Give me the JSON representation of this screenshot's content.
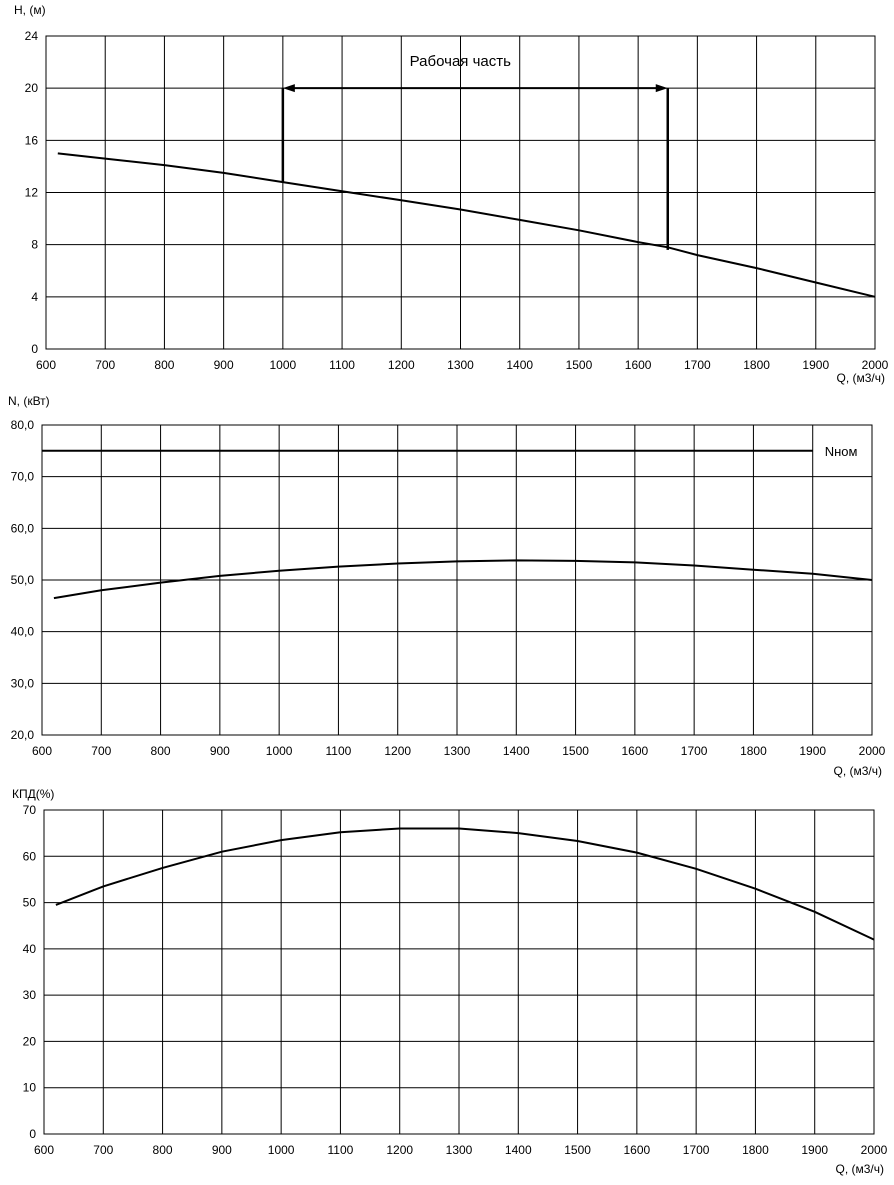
{
  "chart_data": [
    {
      "type": "line",
      "ylabel": "H, (м)",
      "xlabel": "Q, (м3/ч)",
      "xlim": [
        600,
        2000
      ],
      "ylim": [
        0,
        24
      ],
      "x_ticks": [
        "600",
        "700",
        "800",
        "900",
        "1000",
        "1100",
        "1200",
        "1300",
        "1400",
        "1500",
        "1600",
        "1700",
        "1800",
        "1900",
        "2000"
      ],
      "y_ticks": [
        "0",
        "4",
        "8",
        "12",
        "16",
        "20",
        "24"
      ],
      "grid": true,
      "series": [
        {
          "x": [
            620,
            700,
            800,
            900,
            1000,
            1100,
            1200,
            1300,
            1400,
            1500,
            1600,
            1650,
            1700,
            1800,
            1900,
            2000
          ],
          "y": [
            15.0,
            14.6,
            14.1,
            13.5,
            12.8,
            12.1,
            11.4,
            10.7,
            9.9,
            9.1,
            8.2,
            7.8,
            7.2,
            6.2,
            5.1,
            4.0
          ]
        }
      ],
      "annotations": [
        {
          "text": "Рабочая часть",
          "x_start": 1000,
          "x_end": 1650,
          "y": 20,
          "y_start_bottom": 12.8,
          "y_end_bottom": 7.6
        }
      ]
    },
    {
      "type": "line",
      "ylabel": "N, (кВт)",
      "xlabel": "Q, (м3/ч)",
      "xlim": [
        600,
        2000
      ],
      "ylim": [
        20,
        80
      ],
      "x_ticks": [
        "600",
        "700",
        "800",
        "900",
        "1000",
        "1100",
        "1200",
        "1300",
        "1400",
        "1500",
        "1600",
        "1700",
        "1800",
        "1900",
        "2000"
      ],
      "y_ticks": [
        "20,0",
        "30,0",
        "40,0",
        "50,0",
        "60,0",
        "70,0",
        "80,0"
      ],
      "grid": true,
      "series": [
        {
          "x": [
            620,
            700,
            800,
            900,
            1000,
            1100,
            1200,
            1300,
            1400,
            1500,
            1600,
            1700,
            1800,
            1900,
            2000
          ],
          "y": [
            46.5,
            48.0,
            49.5,
            50.8,
            51.8,
            52.6,
            53.2,
            53.6,
            53.8,
            53.7,
            53.4,
            52.8,
            52.0,
            51.2,
            50.0
          ]
        },
        {
          "name": "Nном",
          "x": [
            600,
            1900
          ],
          "y": [
            75,
            75
          ]
        }
      ]
    },
    {
      "type": "line",
      "ylabel": "КПД(%)",
      "xlabel": "Q, (м3/ч)",
      "xlim": [
        600,
        2000
      ],
      "ylim": [
        0,
        70
      ],
      "x_ticks": [
        "600",
        "700",
        "800",
        "900",
        "1000",
        "1100",
        "1200",
        "1300",
        "1400",
        "1500",
        "1600",
        "1700",
        "1800",
        "1900",
        "2000"
      ],
      "y_ticks": [
        "0",
        "10",
        "20",
        "30",
        "40",
        "50",
        "60",
        "70"
      ],
      "grid": true,
      "series": [
        {
          "x": [
            620,
            700,
            800,
            900,
            1000,
            1100,
            1200,
            1300,
            1400,
            1500,
            1600,
            1700,
            1800,
            1900,
            2000
          ],
          "y": [
            49.5,
            53.5,
            57.5,
            61.0,
            63.5,
            65.2,
            66.0,
            66.0,
            65.0,
            63.3,
            60.8,
            57.3,
            53.0,
            48.0,
            42.0
          ]
        }
      ]
    }
  ]
}
